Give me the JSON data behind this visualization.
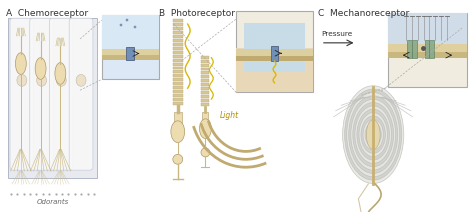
{
  "bg_color": "#ffffff",
  "panel_A_label": "A  Chemoreceptor",
  "panel_B_label": "B  Photoreceptor",
  "panel_C_label": "C  Mechanoreceptor",
  "odorants_label": "Odorants",
  "light_label": "Light",
  "pressure_label": "Pressure",
  "label_fontsize": 6.5,
  "sublabel_fontsize": 5.0,
  "cell_fill": "#f5f0e8",
  "cell_border": "#c8bfa8",
  "tissue_bg": "#e8eaf0",
  "inset_bg_A": "#dce8f5",
  "inset_bg_BC": "#f0ece0",
  "inset_border": "#aaaaaa",
  "membrane_tan": "#e0cfa0",
  "membrane_dark": "#c8b888",
  "channel_blue": "#7090b8",
  "channel_border": "#506080",
  "nerve_tan": "#c8b880",
  "neuron_fill": "#eddcb0",
  "neuron_border": "#b09868",
  "disc_fill": "#d8c898",
  "disc_border": "#b0a070",
  "spiral_light": "#e0e0e0",
  "spiral_mid": "#c8c8c8",
  "channel_green": "#809880",
  "dot_gray": "#888888",
  "dashed_color": "#aaaaaa",
  "yellow_color": "#d8b800",
  "arrow_color": "#333333",
  "text_color": "#333333"
}
